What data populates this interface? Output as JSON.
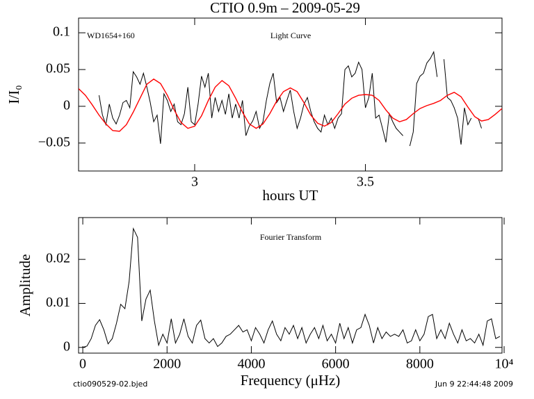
{
  "chart_data": [
    {
      "type": "line",
      "title": "CTIO 0.9m  –  2009-05-29",
      "annotations": [
        "WD1654+160",
        "Light Curve"
      ],
      "xlabel": "hours UT",
      "ylabel": "I/I₀",
      "xlim": [
        2.66,
        3.9
      ],
      "xticks": [
        3,
        3.5
      ],
      "ylim": [
        -0.088,
        0.12
      ],
      "yticks": [
        {
          "value": -0.05,
          "label": "−0.05"
        },
        0,
        0.05,
        0.1
      ],
      "series": [
        {
          "color": "#000000",
          "x": [
            2.72,
            2.73,
            2.74,
            2.75,
            2.76,
            2.77,
            2.78,
            2.79,
            2.8,
            2.81,
            2.82,
            2.83,
            2.84,
            2.85,
            2.86,
            2.87,
            2.88,
            2.89,
            2.9,
            2.91,
            2.92,
            2.93,
            2.94,
            2.95,
            2.96,
            2.97,
            2.98,
            2.99,
            3.0,
            3.01,
            3.02,
            3.03,
            3.04,
            3.05,
            3.06,
            3.07,
            3.08,
            3.09,
            3.1,
            3.11,
            3.12,
            3.13,
            3.14,
            3.15,
            3.16,
            3.17,
            3.18,
            3.19,
            3.2,
            3.21,
            3.22,
            3.23,
            3.24,
            3.25,
            3.26,
            3.27,
            3.28,
            3.29,
            3.3,
            3.31,
            3.32,
            3.33,
            3.34,
            3.35,
            3.36,
            3.37,
            3.38,
            3.39,
            3.4,
            3.41,
            3.42,
            3.43,
            3.44,
            3.45,
            3.46,
            3.47,
            3.48,
            3.49,
            3.5,
            3.51,
            3.52,
            3.53,
            3.54,
            3.55,
            3.56,
            3.57,
            3.58,
            3.59,
            3.6,
            3.61,
            3.62,
            3.63,
            3.64,
            3.65,
            3.66,
            3.67,
            3.68,
            3.69,
            3.7,
            3.71,
            3.72,
            3.73,
            3.74,
            3.75,
            3.76,
            3.77,
            3.78,
            3.79,
            3.8,
            3.81,
            3.82,
            3.83,
            3.84
          ],
          "values": [
            0.015,
            -0.012,
            -0.025,
            0.003,
            -0.016,
            -0.024,
            -0.012,
            0.005,
            0.008,
            -0.002,
            0.047,
            0.04,
            0.03,
            0.045,
            0.026,
            0.005,
            -0.021,
            -0.012,
            -0.051,
            0.017,
            0.008,
            -0.007,
            0.003,
            -0.021,
            -0.025,
            -0.01,
            0.026,
            -0.021,
            -0.025,
            0.003,
            0.041,
            0.026,
            0.045,
            -0.016,
            0.012,
            -0.007,
            0.008,
            -0.011,
            0.017,
            -0.016,
            0.003,
            -0.016,
            0.008,
            -0.04,
            -0.027,
            -0.02,
            -0.007,
            -0.03,
            -0.021,
            0.008,
            0.031,
            0.045,
            0.005,
            0.012,
            -0.007,
            0.008,
            0.022,
            -0.007,
            -0.03,
            -0.016,
            0.003,
            0.012,
            -0.007,
            -0.021,
            -0.03,
            -0.035,
            -0.012,
            -0.025,
            -0.016,
            -0.03,
            -0.016,
            -0.01,
            0.05,
            0.055,
            0.04,
            0.045,
            0.06,
            0.05,
            -0.002,
            0.012,
            0.045,
            -0.016,
            -0.012,
            -0.03,
            -0.049,
            -0.01,
            -0.021,
            -0.03,
            -0.035,
            -0.04,
            null,
            -0.054,
            -0.035,
            0.031,
            0.041,
            0.045,
            0.059,
            0.065,
            0.074,
            0.04,
            null,
            0.064,
            0.012,
            0.008,
            -0.002,
            -0.016,
            -0.052,
            -0.002,
            -0.025,
            -0.016,
            null,
            -0.016,
            -0.03
          ]
        },
        {
          "color": "#ff0000",
          "x": [
            2.66,
            2.68,
            2.7,
            2.72,
            2.74,
            2.76,
            2.78,
            2.8,
            2.82,
            2.84,
            2.86,
            2.88,
            2.9,
            2.92,
            2.94,
            2.96,
            2.98,
            3.0,
            3.02,
            3.04,
            3.06,
            3.08,
            3.1,
            3.12,
            3.14,
            3.16,
            3.18,
            3.2,
            3.22,
            3.24,
            3.26,
            3.28,
            3.3,
            3.32,
            3.34,
            3.36,
            3.38,
            3.4,
            3.42,
            3.44,
            3.46,
            3.48,
            3.5,
            3.52,
            3.54,
            3.56,
            3.58,
            3.6,
            3.62,
            3.64,
            3.66,
            3.68,
            3.7,
            3.72,
            3.74,
            3.76,
            3.78,
            3.8,
            3.82,
            3.84,
            3.86,
            3.88,
            3.9
          ],
          "values": [
            0.024,
            0.015,
            0.002,
            -0.012,
            -0.024,
            -0.033,
            -0.034,
            -0.025,
            -0.008,
            0.011,
            0.03,
            0.037,
            0.031,
            0.015,
            -0.005,
            -0.022,
            -0.03,
            -0.027,
            -0.013,
            0.008,
            0.026,
            0.035,
            0.028,
            0.011,
            -0.008,
            -0.024,
            -0.03,
            -0.024,
            -0.01,
            0.007,
            0.02,
            0.025,
            0.02,
            0.005,
            -0.012,
            -0.023,
            -0.027,
            -0.022,
            -0.01,
            0.003,
            0.011,
            0.015,
            0.016,
            0.015,
            0.008,
            -0.005,
            -0.016,
            -0.021,
            -0.018,
            -0.01,
            -0.003,
            0.001,
            0.004,
            0.008,
            0.015,
            0.019,
            0.013,
            -0.001,
            -0.014,
            -0.02,
            -0.018,
            -0.011,
            -0.003
          ]
        }
      ]
    },
    {
      "type": "line",
      "annotations": [
        "Fourier Transform"
      ],
      "xlabel": "Frequency (μHz)",
      "ylabel": "Amplitude",
      "xlim": [
        -100,
        9950
      ],
      "xticks": [
        0,
        2000,
        4000,
        6000,
        8000,
        {
          "value": 10000,
          "label": "10⁴"
        }
      ],
      "ylim": [
        -0.0013,
        0.0295
      ],
      "yticks": [
        0,
        0.01,
        0.02
      ],
      "series": [
        {
          "color": "#000000",
          "x": [
            0,
            100,
            200,
            300,
            400,
            500,
            600,
            700,
            800,
            900,
            1000,
            1100,
            1200,
            1300,
            1400,
            1500,
            1600,
            1700,
            1800,
            1900,
            2000,
            2100,
            2200,
            2300,
            2400,
            2500,
            2600,
            2700,
            2800,
            2900,
            3000,
            3100,
            3200,
            3300,
            3400,
            3500,
            3600,
            3700,
            3800,
            3900,
            4000,
            4100,
            4200,
            4300,
            4400,
            4500,
            4600,
            4700,
            4800,
            4900,
            5000,
            5100,
            5200,
            5300,
            5400,
            5500,
            5600,
            5700,
            5800,
            5900,
            6000,
            6100,
            6200,
            6300,
            6400,
            6500,
            6600,
            6700,
            6800,
            6900,
            7000,
            7100,
            7200,
            7300,
            7400,
            7500,
            7600,
            7700,
            7800,
            7900,
            8000,
            8100,
            8200,
            8300,
            8400,
            8500,
            8600,
            8700,
            8800,
            8900,
            9000,
            9100,
            9200,
            9300,
            9400,
            9500,
            9600,
            9700,
            9800,
            9900
          ],
          "values": [
            0.0,
            0.0003,
            0.002,
            0.005,
            0.0063,
            0.004,
            0.0008,
            0.002,
            0.0055,
            0.0098,
            0.0088,
            0.015,
            0.027,
            0.025,
            0.006,
            0.011,
            0.013,
            0.006,
            0.0005,
            0.003,
            0.001,
            0.0065,
            0.001,
            0.003,
            0.0065,
            0.0025,
            0.001,
            0.005,
            0.0062,
            0.002,
            0.001,
            0.002,
            0.0002,
            0.001,
            0.0025,
            0.003,
            0.004,
            0.005,
            0.0035,
            0.004,
            0.0015,
            0.0045,
            0.003,
            0.001,
            0.004,
            0.006,
            0.003,
            0.0015,
            0.0045,
            0.003,
            0.005,
            0.002,
            0.0045,
            0.001,
            0.003,
            0.0045,
            0.002,
            0.005,
            0.0015,
            0.003,
            0.001,
            0.0055,
            0.002,
            0.0045,
            0.001,
            0.004,
            0.0045,
            0.0075,
            0.005,
            0.001,
            0.0045,
            0.002,
            0.0035,
            0.0025,
            0.003,
            0.0025,
            0.004,
            0.001,
            0.0015,
            0.004,
            0.0015,
            0.003,
            0.007,
            0.0075,
            0.002,
            0.004,
            0.002,
            0.0055,
            0.003,
            0.001,
            0.004,
            0.0015,
            0.002,
            0.001,
            0.003,
            0.0005,
            0.006,
            0.0065,
            0.002,
            0.0025
          ]
        }
      ]
    }
  ],
  "footer": {
    "left": "ctio090529-02.bjed",
    "right": "Jun  9 22:44:48 2009"
  }
}
